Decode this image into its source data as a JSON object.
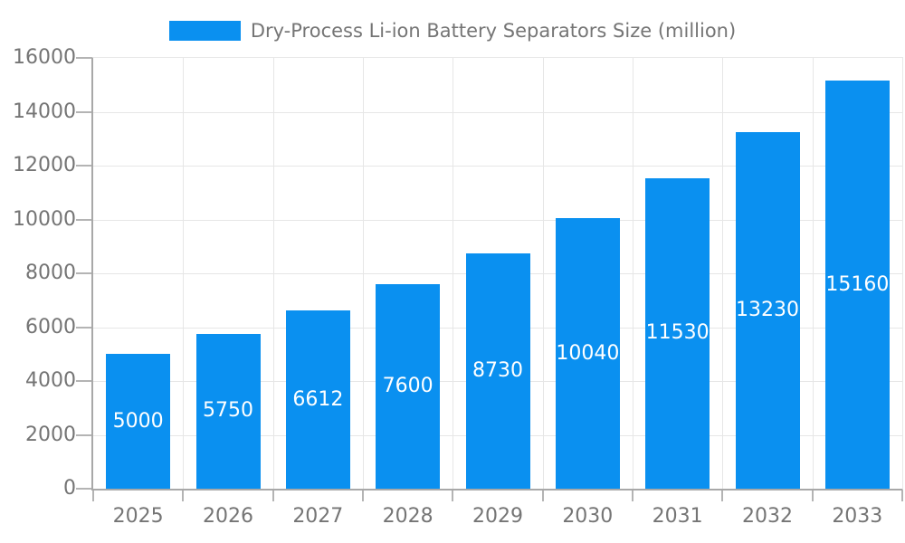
{
  "legend": {
    "label": "Dry-Process Li-ion Battery Separators Size (million)"
  },
  "chart_data": {
    "type": "bar",
    "title": "Dry-Process Li-ion Battery Separators Size (million)",
    "categories": [
      "2025",
      "2026",
      "2027",
      "2028",
      "2029",
      "2030",
      "2031",
      "2032",
      "2033"
    ],
    "values": [
      5000,
      5750,
      6612,
      7600,
      8730,
      10040,
      11530,
      13230,
      15160
    ],
    "xlabel": "",
    "ylabel": "",
    "ylim": [
      0,
      16000
    ],
    "yticks": [
      0,
      2000,
      4000,
      6000,
      8000,
      10000,
      12000,
      14000,
      16000
    ],
    "grid": true,
    "legend_position": "top-center",
    "value_labels": "inside-center-white"
  },
  "colors": {
    "bar": "#0a90f0",
    "grid": "#e6e6e6",
    "axis": "#a8a8a8",
    "tick": "#b4b4b4",
    "tick_text": "#757575",
    "value_label_text": "#ffffff",
    "background": "#ffffff"
  }
}
